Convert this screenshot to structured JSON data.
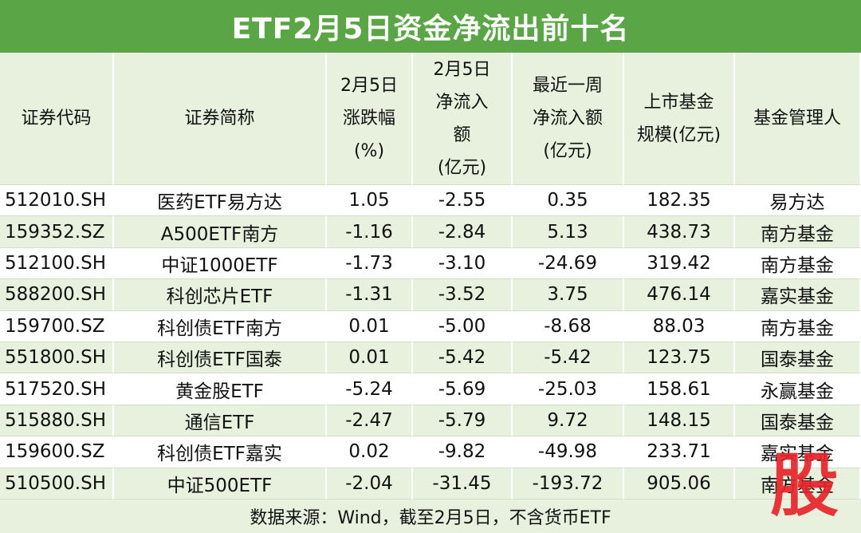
{
  "title": "ETF2月5日资金净流出前十名",
  "table": {
    "header": [
      [
        "证券代码"
      ],
      [
        "证券简称"
      ],
      [
        "2月5日",
        "涨跌幅",
        "(%)"
      ],
      [
        "2月5日",
        "净流入",
        "额",
        "(亿元)"
      ],
      [
        "最近一周",
        "净流入额",
        "(亿元)"
      ],
      [
        "上市基金",
        "规模(亿元)"
      ],
      [
        "基金管理人"
      ]
    ],
    "rows": [
      [
        "512010.SH",
        "医药ETF易方达",
        "1.05",
        "-2.55",
        "0.35",
        "182.35",
        "易方达"
      ],
      [
        "159352.SZ",
        "A500ETF南方",
        "-1.16",
        "-2.84",
        "5.13",
        "438.73",
        "南方基金"
      ],
      [
        "512100.SH",
        "中证1000ETF",
        "-1.73",
        "-3.10",
        "-24.69",
        "319.42",
        "南方基金"
      ],
      [
        "588200.SH",
        "科创芯片ETF",
        "-1.31",
        "-3.52",
        "3.75",
        "476.14",
        "嘉实基金"
      ],
      [
        "159700.SZ",
        "科创债ETF南方",
        "0.01",
        "-5.00",
        "-8.68",
        "88.03",
        "南方基金"
      ],
      [
        "551800.SH",
        "科创债ETF国泰",
        "0.01",
        "-5.42",
        "-5.42",
        "123.75",
        "国泰基金"
      ],
      [
        "517520.SH",
        "黄金股ETF",
        "-5.24",
        "-5.69",
        "-25.03",
        "158.61",
        "永赢基金"
      ],
      [
        "515880.SH",
        "通信ETF",
        "-2.47",
        "-5.79",
        "9.72",
        "148.15",
        "国泰基金"
      ],
      [
        "159600.SZ",
        "科创债ETF嘉实",
        "0.02",
        "-9.82",
        "-49.98",
        "233.71",
        "嘉实基金"
      ],
      [
        "510500.SH",
        "中证500ETF",
        "-2.04",
        "-31.45",
        "-193.72",
        "905.06",
        "南方基金"
      ]
    ]
  },
  "footer": "数据来源：Wind，截至2月5日，不含货币ETF",
  "watermark": "股"
}
